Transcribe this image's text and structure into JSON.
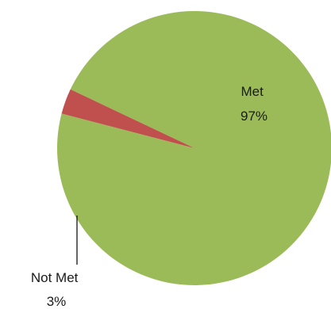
{
  "chart_data": {
    "type": "pie",
    "slices": [
      {
        "label": "Met",
        "value": 97,
        "value_label": "97%",
        "color": "#9bbb59"
      },
      {
        "label": "Not Met",
        "value": 3,
        "value_label": "3%",
        "color": "#c0504d"
      }
    ],
    "legend": "none"
  }
}
